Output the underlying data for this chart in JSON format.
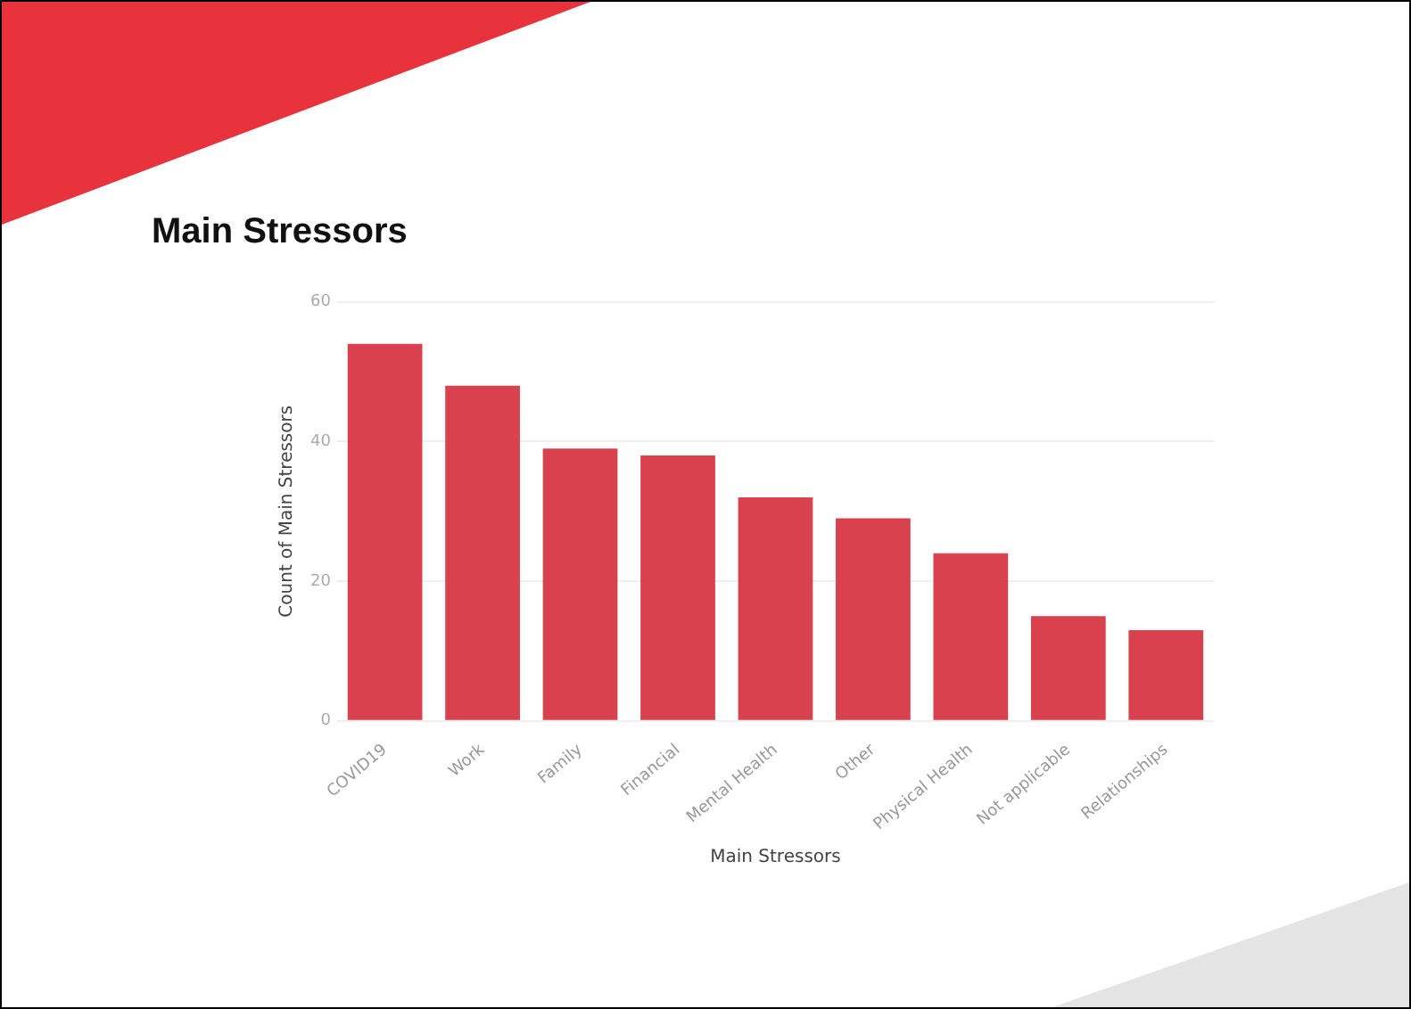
{
  "chart_data": {
    "type": "bar",
    "title": "Main Stressors",
    "xlabel": "Main Stressors",
    "ylabel": "Count of Main Stressors",
    "categories": [
      "COVID19",
      "Work",
      "Family",
      "Financial",
      "Mental Health",
      "Other",
      "Physical Health",
      "Not applicable",
      "Relationships"
    ],
    "values": [
      54,
      48,
      39,
      38,
      32,
      29,
      24,
      15,
      13
    ],
    "color": "#d9414f",
    "ylim": [
      0,
      60
    ],
    "yticks": [
      0,
      20,
      40,
      60
    ],
    "grid": "y",
    "legend": false
  }
}
